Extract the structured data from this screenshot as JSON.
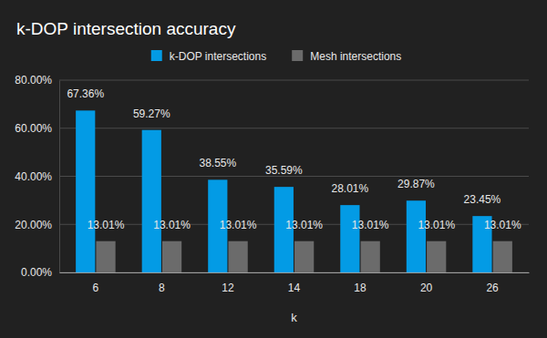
{
  "chart_data": {
    "type": "bar",
    "title": "k-DOP intersection accuracy",
    "x_label": "k",
    "categories": [
      "6",
      "8",
      "12",
      "14",
      "18",
      "20",
      "26"
    ],
    "series": [
      {
        "name": "k-DOP intersections",
        "color": "#039be5",
        "values": [
          67.36,
          59.27,
          38.55,
          35.59,
          28.01,
          29.87,
          23.45
        ],
        "value_labels": [
          "67.36%",
          "59.27%",
          "38.55%",
          "35.59%",
          "28.01%",
          "29.87%",
          "23.45%"
        ]
      },
      {
        "name": "Mesh intersections",
        "color": "#6b6b6b",
        "values": [
          13.01,
          13.01,
          13.01,
          13.01,
          13.01,
          13.01,
          13.01
        ],
        "value_labels": [
          "13.01%",
          "13.01%",
          "13.01%",
          "13.01%",
          "13.01%",
          "13.01%",
          "13.01%"
        ]
      }
    ],
    "ylim": [
      0,
      80
    ],
    "yticks": [
      {
        "value": 0,
        "label": "0.00%"
      },
      {
        "value": 20,
        "label": "20.00%"
      },
      {
        "value": 40,
        "label": "40.00%"
      },
      {
        "value": 60,
        "label": "60.00%"
      },
      {
        "value": 80,
        "label": "80.00%"
      }
    ],
    "grid": true,
    "legend": "top",
    "data_labels": true
  }
}
